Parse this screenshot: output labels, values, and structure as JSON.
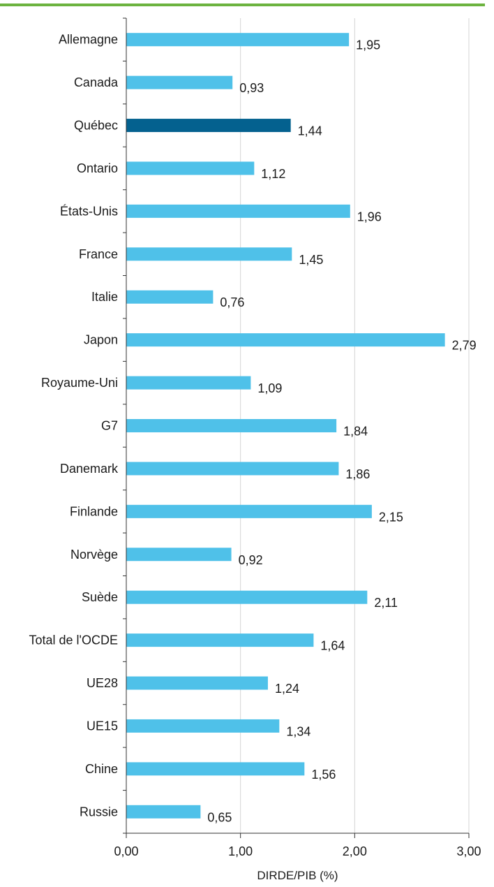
{
  "colors": {
    "accent_line": "#6cb33f",
    "bar_default": "#4fc1e9",
    "bar_highlight": "#04618f",
    "grid": "#d4d4d4",
    "axis": "#333333"
  },
  "chart_data": {
    "type": "bar",
    "orientation": "horizontal",
    "categories": [
      "Allemagne",
      "Canada",
      "Québec",
      "Ontario",
      "États-Unis",
      "France",
      "Italie",
      "Japon",
      "Royaume-Uni",
      "G7",
      "Danemark",
      "Finlande",
      "Norvège",
      "Suède",
      "Total de l'OCDE",
      "UE28",
      "UE15",
      "Chine",
      "Russie"
    ],
    "values": [
      1.95,
      0.93,
      1.44,
      1.12,
      1.96,
      1.45,
      0.76,
      2.79,
      1.09,
      1.84,
      1.86,
      2.15,
      0.92,
      2.11,
      1.64,
      1.24,
      1.34,
      1.56,
      0.65
    ],
    "value_labels": [
      "1,95",
      "0,93",
      "1,44",
      "1,12",
      "1,96",
      "1,45",
      "0,76",
      "2,79",
      "1,09",
      "1,84",
      "1,86",
      "2,15",
      "0,92",
      "2,11",
      "1,64",
      "1,24",
      "1,34",
      "1,56",
      "0,65"
    ],
    "highlighted_category": "Québec",
    "xlabel": "DIRDE/PIB (%)",
    "xlim": [
      0,
      3
    ],
    "xticks": [
      0,
      1,
      2,
      3
    ],
    "xtick_labels": [
      "0,00",
      "1,00",
      "2,00",
      "3,00"
    ],
    "grid": true
  }
}
